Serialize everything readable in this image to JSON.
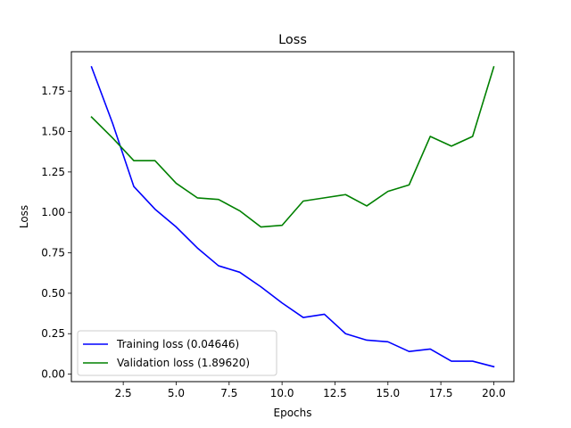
{
  "chart_data": {
    "type": "line",
    "title": "Loss",
    "xlabel": "Epochs",
    "ylabel": "Loss",
    "xlim": [
      0.05,
      20.95
    ],
    "ylim": [
      -0.0465,
      1.9937
    ],
    "x_ticks": [
      2.5,
      5.0,
      7.5,
      10.0,
      12.5,
      15.0,
      17.5,
      20.0
    ],
    "x_tick_labels": [
      "2.5",
      "5.0",
      "7.5",
      "10.0",
      "12.5",
      "15.0",
      "17.5",
      "20.0"
    ],
    "y_ticks": [
      0.0,
      0.25,
      0.5,
      0.75,
      1.0,
      1.25,
      1.5,
      1.75
    ],
    "y_tick_labels": [
      "0.00",
      "0.25",
      "0.50",
      "0.75",
      "1.00",
      "1.25",
      "1.50",
      "1.75"
    ],
    "grid": false,
    "legend_position": "lower-left",
    "x": [
      1,
      2,
      3,
      4,
      5,
      6,
      7,
      8,
      9,
      10,
      11,
      12,
      13,
      14,
      15,
      16,
      17,
      18,
      19,
      20
    ],
    "series": [
      {
        "name": "Training loss (0.04646)",
        "color": "#0000ff",
        "values": [
          1.9,
          1.55,
          1.16,
          1.02,
          0.91,
          0.78,
          0.67,
          0.63,
          0.54,
          0.44,
          0.35,
          0.37,
          0.25,
          0.21,
          0.2,
          0.14,
          0.155,
          0.08,
          0.08,
          0.046
        ]
      },
      {
        "name": "Validation loss (1.89620)",
        "color": "#008000",
        "values": [
          1.59,
          1.46,
          1.32,
          1.32,
          1.18,
          1.09,
          1.08,
          1.01,
          0.91,
          0.92,
          1.07,
          1.09,
          1.11,
          1.04,
          1.13,
          1.17,
          1.47,
          1.41,
          1.47,
          1.9
        ]
      }
    ]
  }
}
